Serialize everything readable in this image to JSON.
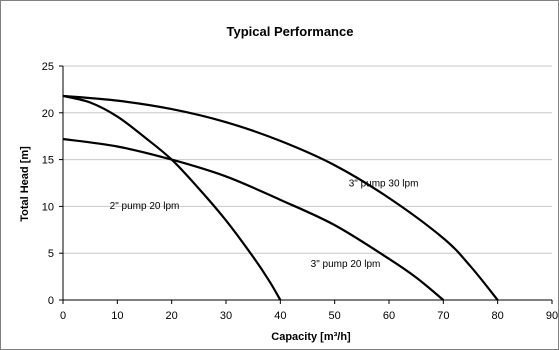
{
  "chart_data": {
    "type": "line",
    "title": "Typical Performance",
    "xlabel": "Capacity [m³/h]",
    "ylabel": "Total Head [m]",
    "xlim": [
      0,
      90
    ],
    "ylim": [
      0,
      25
    ],
    "x_ticks": [
      0,
      10,
      20,
      30,
      40,
      50,
      60,
      70,
      80,
      90
    ],
    "y_ticks": [
      0,
      5,
      10,
      15,
      20,
      25
    ],
    "grid": true,
    "legend": "none",
    "colors": {
      "line": "#000000",
      "grid": "#c8c8c8",
      "plot_bg": "#ffffff",
      "frame": "#808080"
    },
    "series": [
      {
        "name": "2\" pump 20 lpm",
        "x": [
          0,
          5,
          10,
          15,
          20,
          25,
          30,
          35,
          38,
          40
        ],
        "y": [
          21.8,
          21.1,
          19.6,
          17.4,
          15.0,
          11.9,
          8.5,
          4.6,
          2.0,
          0
        ]
      },
      {
        "name": "3\" pump 20 lpm",
        "x": [
          0,
          10,
          20,
          30,
          40,
          50,
          60,
          65,
          70
        ],
        "y": [
          17.2,
          16.4,
          15.0,
          13.2,
          10.7,
          8.0,
          4.4,
          2.4,
          0
        ]
      },
      {
        "name": "3\" pump 30 lpm",
        "x": [
          0,
          10,
          20,
          30,
          40,
          50,
          60,
          70,
          75,
          80
        ],
        "y": [
          21.8,
          21.3,
          20.4,
          19.0,
          17.0,
          14.4,
          10.9,
          6.6,
          3.6,
          0
        ]
      }
    ],
    "annotations": [
      {
        "text": "3\" pump 30 lpm",
        "x": 59,
        "y": 12.1
      },
      {
        "text": "2\" pump 20 lpm",
        "x": 15,
        "y": 9.7
      },
      {
        "text": "3\" pump 20 lpm",
        "x": 52,
        "y": 3.5
      }
    ]
  }
}
